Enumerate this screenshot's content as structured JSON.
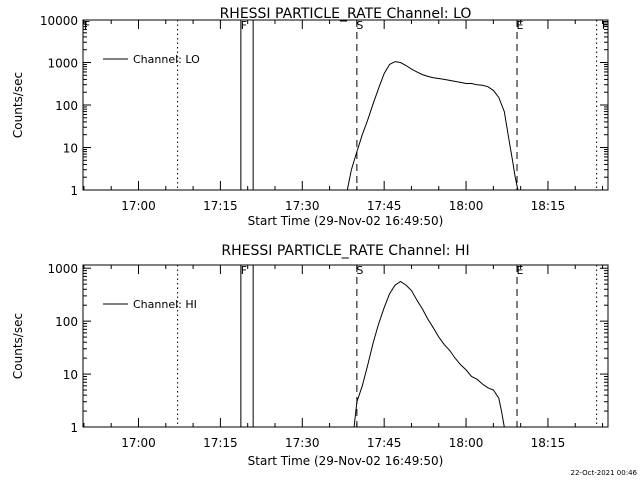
{
  "footer_timestamp": "22-Oct-2021 00:46",
  "chart_data": [
    {
      "type": "line",
      "title": "RHESSI PARTICLE_RATE Channel: LO",
      "xlabel": "Start Time (29-Nov-02 16:49:50)",
      "ylabel": "Counts/sec",
      "yscale": "log",
      "ylim": [
        1,
        10000
      ],
      "ytick_values": [
        1,
        10,
        100,
        1000,
        10000
      ],
      "ytick_labels": [
        "1",
        "10",
        "100",
        "1000",
        "10000"
      ],
      "xlim": [
        "16:49:50",
        "18:26:00"
      ],
      "xtick_values": [
        "17:00",
        "17:15",
        "17:30",
        "17:45",
        "18:00",
        "18:15"
      ],
      "xtick_labels": [
        "17:00",
        "17:15",
        "17:30",
        "17:45",
        "18:00",
        "18:15"
      ],
      "grid": false,
      "legend_position": "top-left",
      "series": [
        {
          "name": "Channel: LO",
          "x": [
            "17:38:15",
            "17:39:00",
            "17:40:00",
            "17:41:00",
            "17:42:00",
            "17:43:00",
            "17:44:00",
            "17:45:00",
            "17:46:00",
            "17:47:00",
            "17:48:00",
            "17:49:00",
            "17:50:00",
            "17:51:00",
            "17:52:00",
            "17:53:00",
            "17:54:00",
            "17:55:00",
            "17:56:00",
            "17:57:00",
            "17:58:00",
            "17:59:00",
            "18:00:00",
            "18:01:00",
            "18:02:00",
            "18:03:00",
            "18:04:00",
            "18:05:00",
            "18:06:00",
            "18:07:00",
            "18:08:00",
            "18:08:30",
            "18:09:00",
            "18:09:30"
          ],
          "y": [
            1,
            3,
            8,
            20,
            45,
            110,
            250,
            550,
            900,
            1050,
            1000,
            850,
            700,
            600,
            520,
            470,
            440,
            420,
            400,
            380,
            360,
            340,
            320,
            320,
            300,
            290,
            270,
            220,
            150,
            70,
            12,
            5,
            2,
            1
          ]
        }
      ],
      "vertical_markers": [
        {
          "time": "17:07:10",
          "style": "dotted",
          "label": ""
        },
        {
          "time": "17:18:45",
          "style": "solid",
          "label": "F"
        },
        {
          "time": "17:21:00",
          "style": "solid",
          "label": ""
        },
        {
          "time": "17:40:00",
          "style": "dashed",
          "label": "S"
        },
        {
          "time": "18:09:20",
          "style": "dashed",
          "label": "E"
        },
        {
          "time": "18:23:55",
          "style": "dotted",
          "label": ""
        }
      ],
      "corner_marks": {
        "left_top": "F",
        "right_top": "F"
      }
    },
    {
      "type": "line",
      "title": "RHESSI PARTICLE_RATE Channel: HI",
      "xlabel": "Start Time (29-Nov-02 16:49:50)",
      "ylabel": "Counts/sec",
      "yscale": "log",
      "ylim": [
        1,
        1150
      ],
      "ytick_values": [
        1,
        10,
        100,
        1000
      ],
      "ytick_labels": [
        "1",
        "10",
        "100",
        "1000"
      ],
      "xlim": [
        "16:49:50",
        "18:26:00"
      ],
      "xtick_values": [
        "17:00",
        "17:15",
        "17:30",
        "17:45",
        "18:00",
        "18:15"
      ],
      "xtick_labels": [
        "17:00",
        "17:15",
        "17:30",
        "17:45",
        "18:00",
        "18:15"
      ],
      "grid": false,
      "legend_position": "top-left",
      "series": [
        {
          "name": "Channel: HI",
          "x": [
            "17:39:30",
            "17:40:00",
            "17:41:00",
            "17:42:00",
            "17:43:00",
            "17:44:00",
            "17:45:00",
            "17:46:00",
            "17:47:00",
            "17:48:00",
            "17:49:00",
            "17:50:00",
            "17:51:00",
            "17:52:00",
            "17:53:00",
            "17:54:00",
            "17:55:00",
            "17:56:00",
            "17:57:00",
            "17:58:00",
            "17:59:00",
            "18:00:00",
            "18:01:00",
            "18:02:00",
            "18:03:00",
            "18:04:00",
            "18:05:00",
            "18:06:00",
            "18:06:30",
            "18:07:00"
          ],
          "y": [
            1,
            3,
            6,
            15,
            40,
            90,
            180,
            330,
            480,
            560,
            480,
            380,
            250,
            170,
            110,
            75,
            50,
            36,
            28,
            20,
            15,
            12,
            9,
            8,
            6.5,
            5.5,
            5,
            3.5,
            2,
            1
          ]
        }
      ],
      "vertical_markers": [
        {
          "time": "17:07:10",
          "style": "dotted",
          "label": ""
        },
        {
          "time": "17:18:45",
          "style": "solid",
          "label": "F"
        },
        {
          "time": "17:21:00",
          "style": "solid",
          "label": ""
        },
        {
          "time": "17:40:00",
          "style": "dashed",
          "label": "S"
        },
        {
          "time": "18:09:20",
          "style": "dashed",
          "label": "E"
        },
        {
          "time": "18:23:55",
          "style": "dotted",
          "label": ""
        }
      ],
      "corner_marks": {
        "left_top": "",
        "right_top": ""
      }
    }
  ]
}
